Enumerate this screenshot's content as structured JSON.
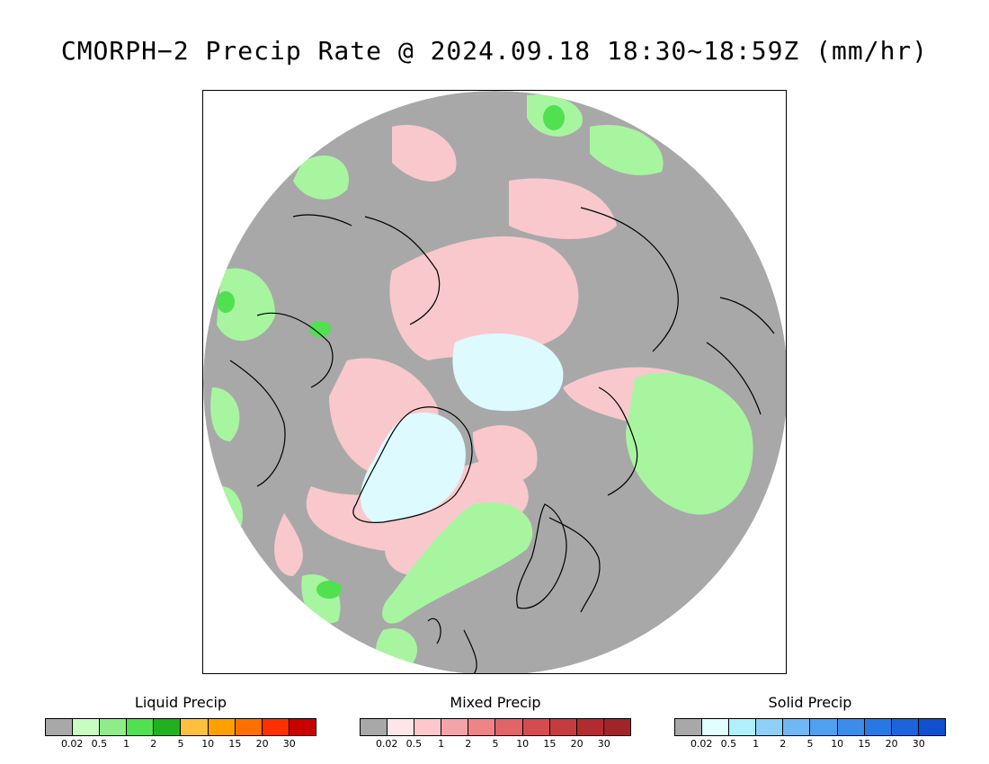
{
  "title": "CMORPH−2 Precip Rate @ 2024.09.18 18:30~18:59Z (mm/hr)",
  "map": {
    "projection": "north polar stereographic",
    "colors": {
      "background_no_precip": "#a8a8a8",
      "land_outline": "#000000",
      "liquid_light": "#a8f5a0",
      "liquid_mid": "#7ee87a",
      "mixed_light": "#f8c8cc",
      "solid_light": "#dcfaff"
    }
  },
  "legends": [
    {
      "title": "Liquid Precip",
      "colors": [
        "#a8a8a8",
        "#c8fcc0",
        "#90ec88",
        "#50e050",
        "#20b020",
        "#ffc040",
        "#ffa000",
        "#ff7000",
        "#ff3000",
        "#c80000"
      ],
      "ticks": [
        "0.02",
        "0.5",
        "1",
        "2",
        "5",
        "10",
        "15",
        "20",
        "30"
      ]
    },
    {
      "title": "Mixed Precip",
      "colors": [
        "#a8a8a8",
        "#ffe4e8",
        "#fcc8cc",
        "#f4a4a8",
        "#ec8488",
        "#e06468",
        "#d44c50",
        "#c43c40",
        "#b02c30",
        "#a02428"
      ],
      "ticks": [
        "0.02",
        "0.5",
        "1",
        "2",
        "5",
        "10",
        "15",
        "20",
        "30"
      ]
    },
    {
      "title": "Solid Precip",
      "colors": [
        "#a8a8a8",
        "#e0ffff",
        "#b0f0fc",
        "#90d0f8",
        "#70b8f4",
        "#50a0f0",
        "#3c8cec",
        "#2878e4",
        "#1c64dc",
        "#1050d0"
      ],
      "ticks": [
        "0.02",
        "0.5",
        "1",
        "2",
        "5",
        "10",
        "15",
        "20",
        "30"
      ]
    }
  ]
}
